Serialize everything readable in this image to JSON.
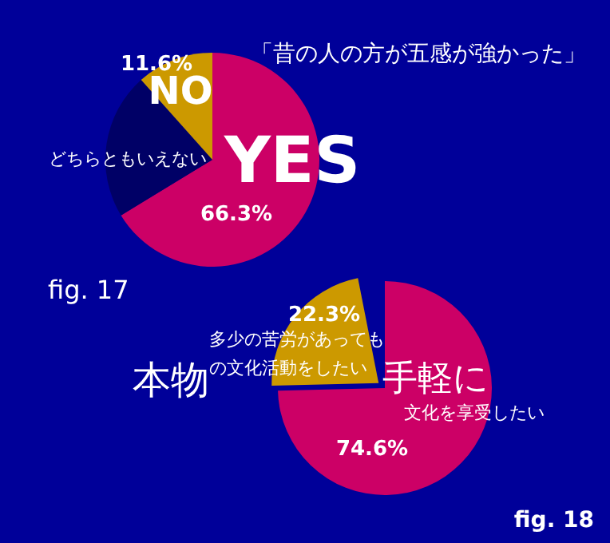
{
  "chart_data": [
    {
      "type": "pie",
      "title": "「昔の人の方が五感が強かった」",
      "categories": [
        "YES",
        "どちらともいえない",
        "NO"
      ],
      "values": [
        66.3,
        22.1,
        11.6
      ],
      "colors": [
        "#cc0066",
        "#000066",
        "#cc9900"
      ],
      "value_labels": [
        "66.3%",
        null,
        "11.6%"
      ],
      "annotations": [
        "fig. 17"
      ]
    },
    {
      "type": "pie",
      "categories": [
        "手軽に",
        "本物"
      ],
      "values": [
        74.6,
        22.3
      ],
      "colors": [
        "#cc0066",
        "#cc9900"
      ],
      "value_labels": [
        "74.6%",
        "22.3%"
      ],
      "annotations": [
        "fig. 18",
        "文化を享受したい",
        "多少の苦労があっても",
        "の文化活動をしたい"
      ]
    }
  ]
}
